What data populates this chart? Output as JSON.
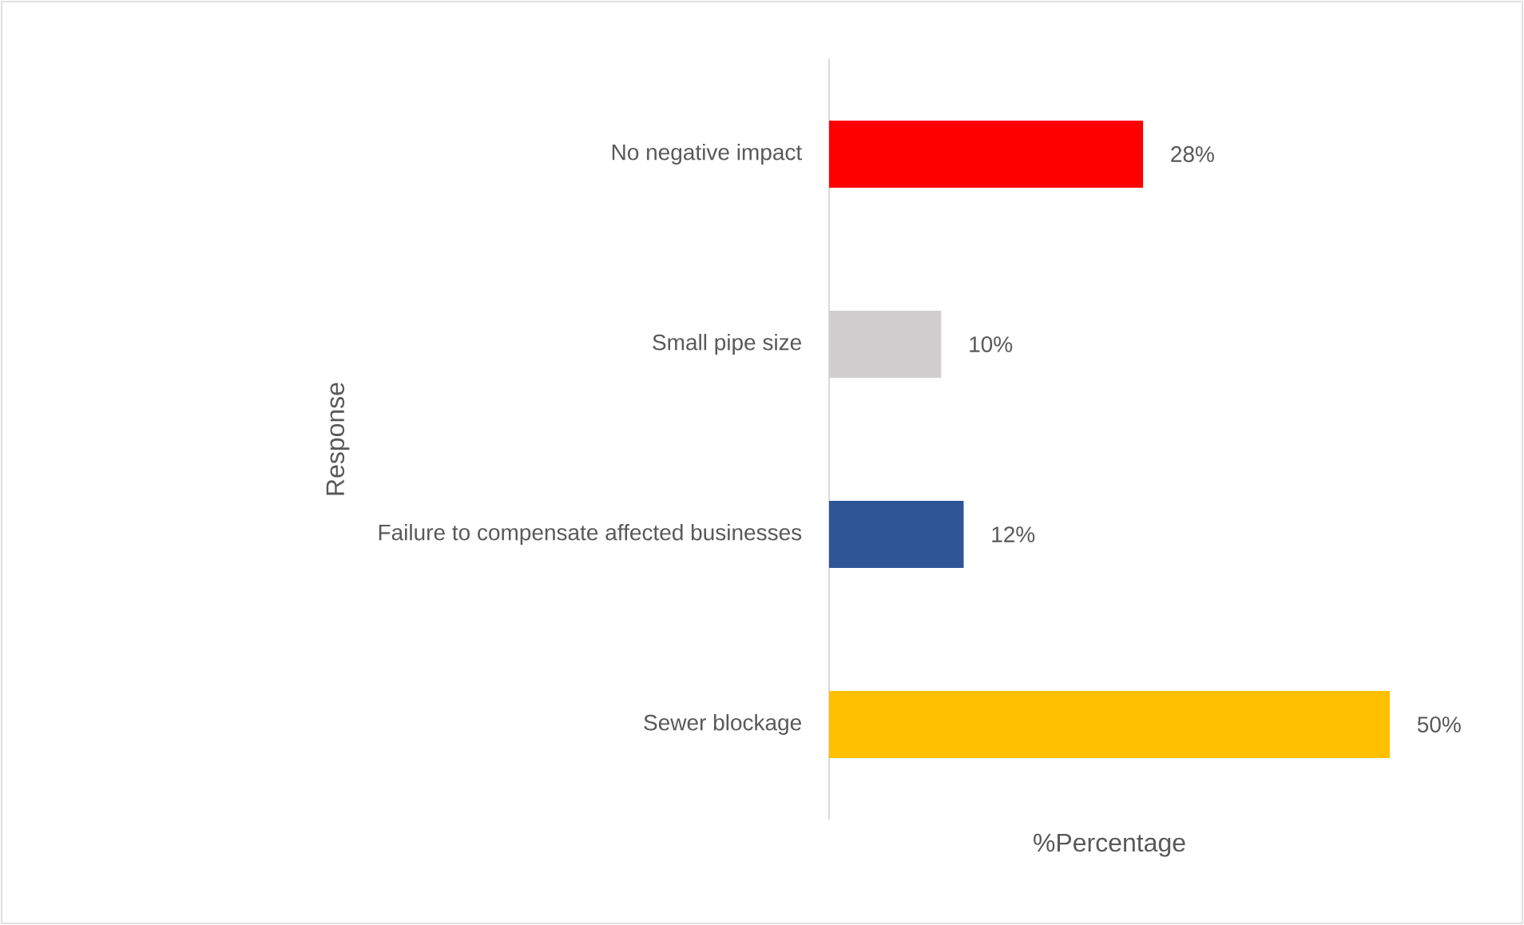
{
  "chart_data": {
    "type": "bar",
    "orientation": "horizontal",
    "categories": [
      "No negative impact",
      "Small pipe size",
      "Failure to compensate affected businesses",
      "Sewer blockage"
    ],
    "values": [
      28,
      10,
      12,
      50
    ],
    "colors": [
      "#ff0000",
      "#d0cece",
      "#2f5597",
      "#ffc000"
    ],
    "value_labels": [
      "28%",
      "10%",
      "12%",
      "50%"
    ],
    "xlabel": "%Percentage",
    "ylabel": "Response"
  }
}
